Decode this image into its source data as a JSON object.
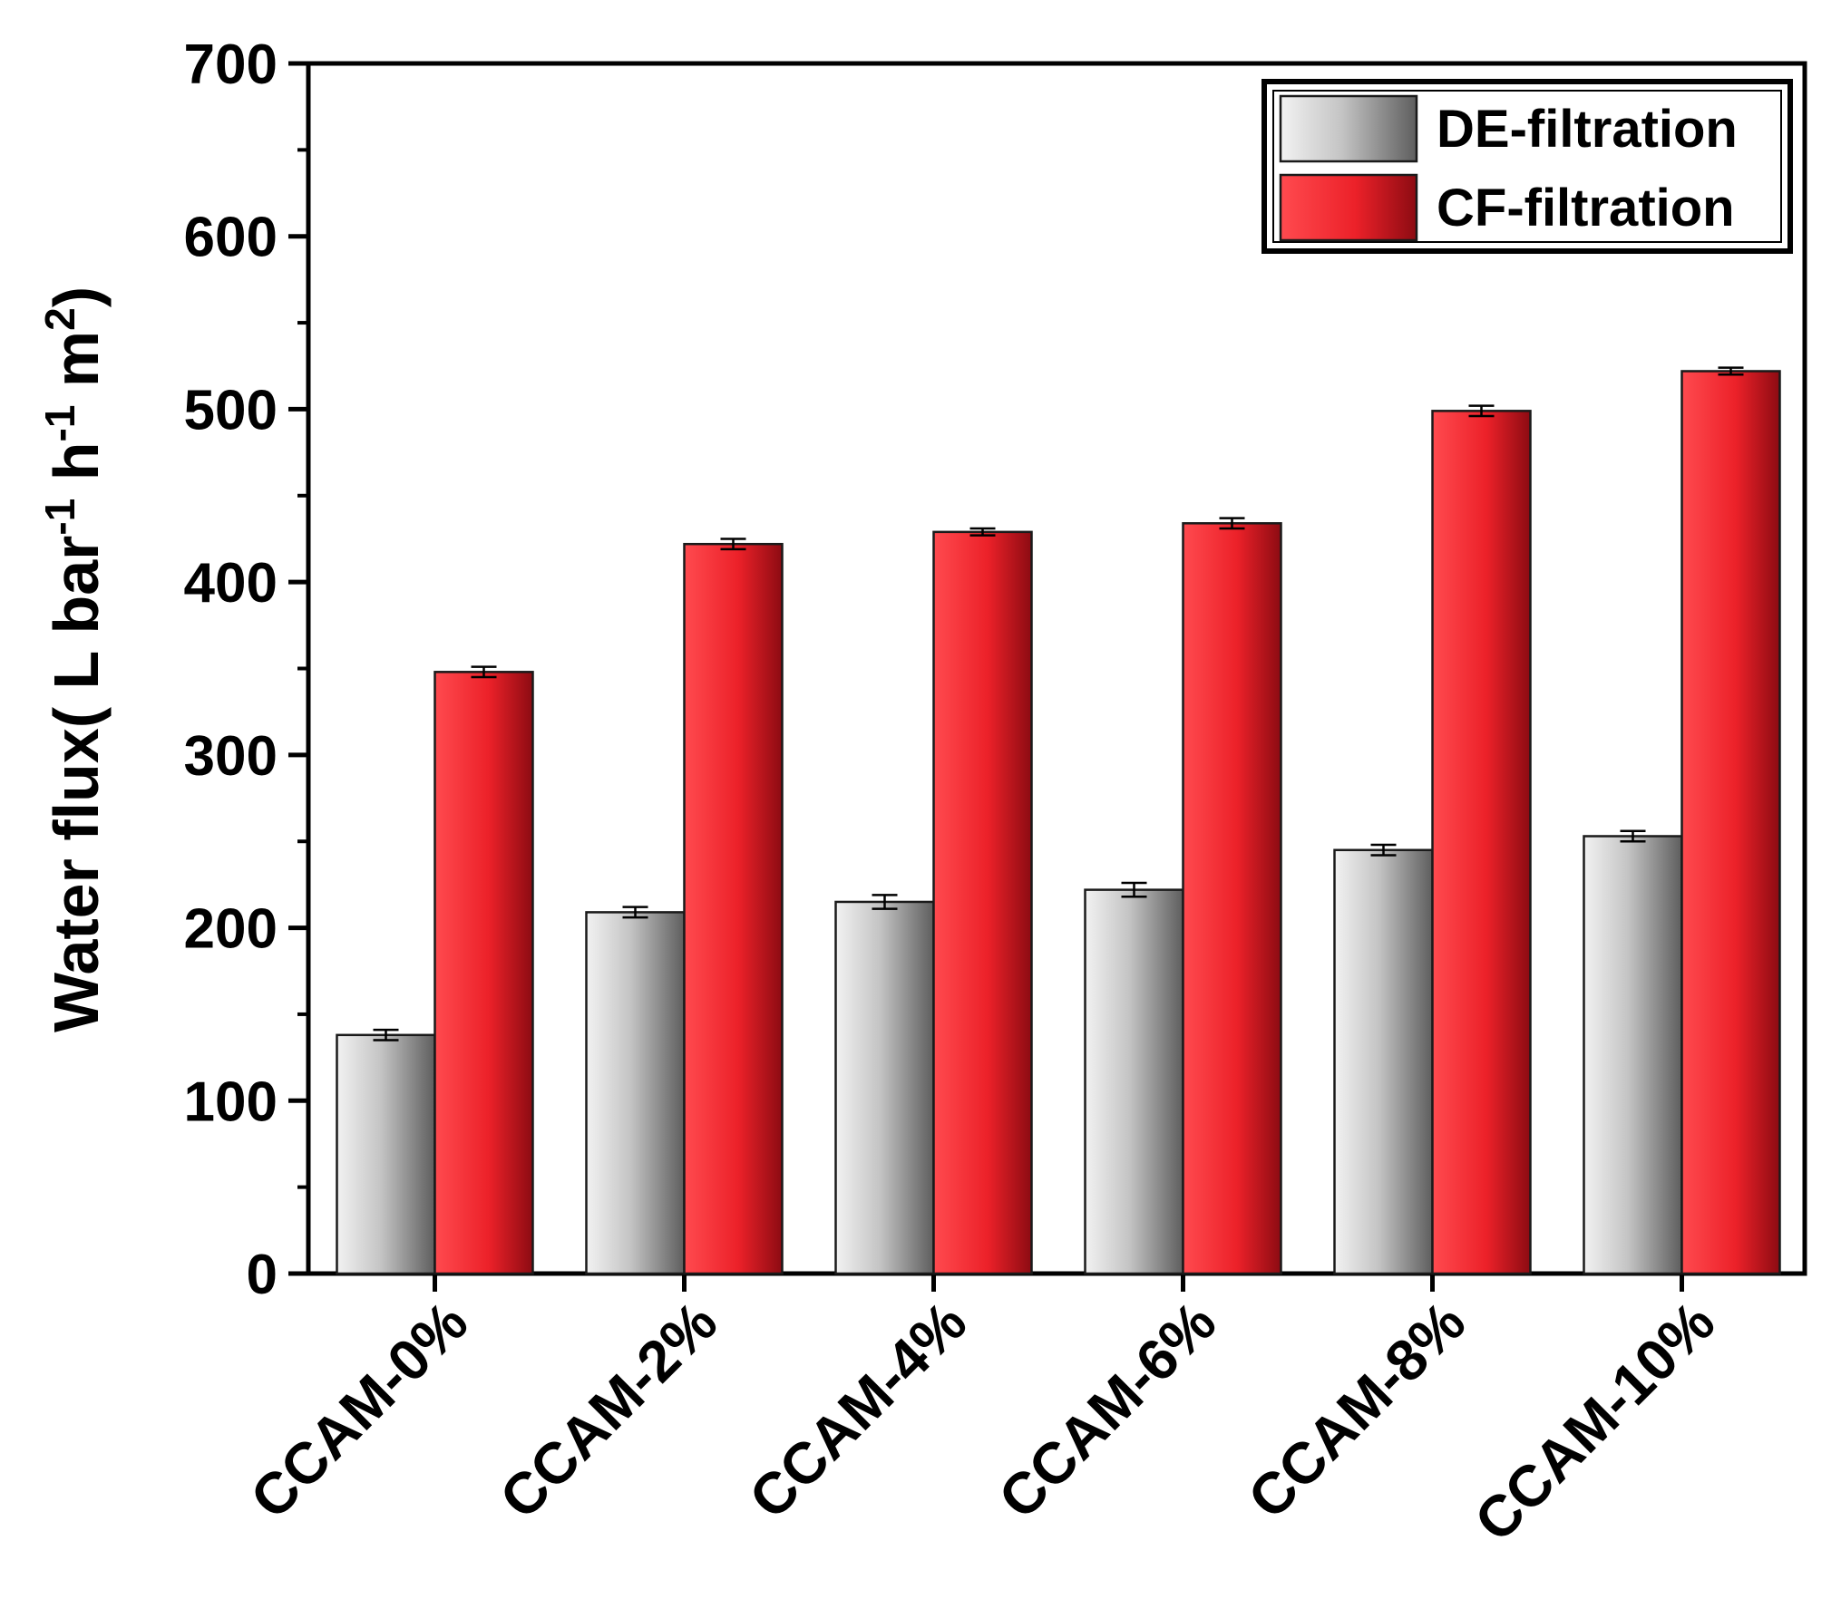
{
  "chart_data": {
    "type": "bar",
    "title": "",
    "xlabel": "",
    "ylabel_parts": [
      "Water flux( L bar",
      "-1",
      " h",
      "-1",
      " m",
      "2",
      ")"
    ],
    "ylim": [
      0,
      700
    ],
    "yticks": [
      0,
      100,
      200,
      300,
      400,
      500,
      600,
      700
    ],
    "categories": [
      "CCAM-0%",
      "CCAM-2%",
      "CCAM-4%",
      "CCAM-6%",
      "CCAM-8%",
      "CCAM-10%"
    ],
    "series": [
      {
        "name": "DE-filtration",
        "color": "#9a9a9a",
        "values": [
          138,
          209,
          215,
          222,
          245,
          253
        ],
        "errors": [
          3,
          3,
          4,
          4,
          3,
          3
        ]
      },
      {
        "name": "CF-filtration",
        "color": "#e8232b",
        "values": [
          348,
          422,
          429,
          434,
          499,
          522
        ],
        "errors": [
          3,
          3,
          2,
          3,
          3,
          2
        ]
      }
    ],
    "legend_position": "top-right",
    "grid": false
  }
}
